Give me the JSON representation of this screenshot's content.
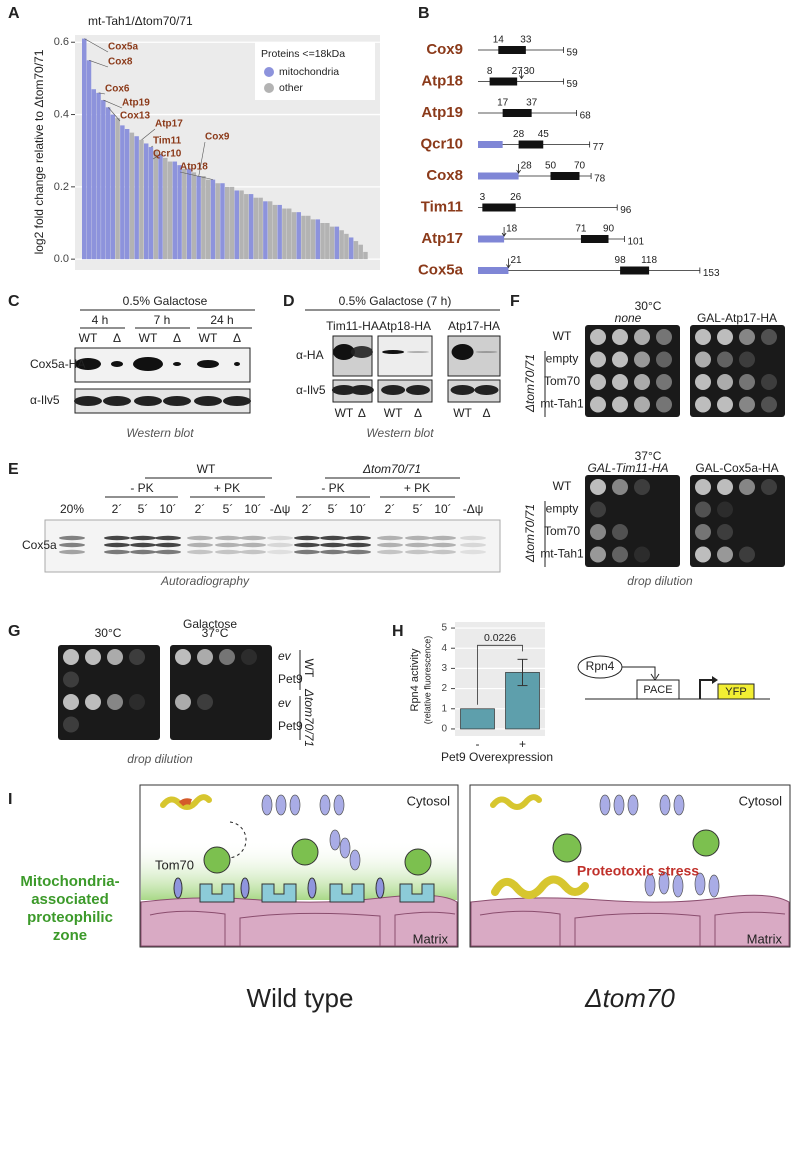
{
  "letters": [
    "A",
    "B",
    "C",
    "D",
    "E",
    "F",
    "G",
    "H",
    "I"
  ],
  "chart_data": [
    {
      "type": "bar",
      "title": "mt-Tah1/Δtom70/71",
      "y_label": "log2 fold change relative to Δtom70/71",
      "legend_title": "Proteins <=18kDa",
      "legend": "top-right",
      "grid": true,
      "ylim": [
        -0.03,
        0.62
      ],
      "yticks": [
        {
          "value": 0,
          "label": "0.0"
        },
        0.2,
        0.4,
        0.6
      ],
      "series": [
        {
          "name": "mitochondria",
          "color": "#8d93dc",
          "values": [
            0.61,
            0.55,
            0.47,
            0.46,
            0.44,
            0.42,
            0.4,
            null,
            0.37,
            0.36,
            null,
            0.34,
            null,
            0.32,
            0.31,
            null,
            0.29,
            null,
            null,
            0.27,
            0.26,
            null,
            0.25,
            null,
            0.23,
            null,
            null,
            0.22,
            null,
            0.21,
            null,
            null,
            0.19,
            null,
            null,
            0.18,
            null,
            null,
            0.16,
            null,
            null,
            0.15,
            null,
            null,
            null,
            0.13,
            null,
            null,
            null,
            0.11,
            null,
            null,
            null,
            0.09,
            null,
            null,
            0.06,
            null,
            null,
            null
          ]
        },
        {
          "name": "other",
          "color": "#b3b3b3",
          "values": [
            null,
            null,
            null,
            null,
            null,
            null,
            null,
            0.39,
            null,
            null,
            0.35,
            null,
            0.33,
            null,
            null,
            0.3,
            null,
            0.28,
            0.27,
            null,
            null,
            0.25,
            null,
            0.24,
            null,
            0.23,
            0.22,
            null,
            0.21,
            null,
            0.2,
            0.2,
            null,
            0.19,
            0.18,
            null,
            0.17,
            0.17,
            null,
            0.16,
            0.15,
            null,
            0.14,
            0.14,
            0.13,
            null,
            0.12,
            0.12,
            0.11,
            null,
            0.1,
            0.1,
            0.09,
            null,
            0.08,
            0.07,
            null,
            0.05,
            0.04,
            0.02
          ]
        }
      ],
      "annotations": [
        "Cox5a",
        "Cox8",
        "Cox6",
        "Atp19",
        "Cox13",
        "Atp17",
        "Tim11",
        "Qcr10",
        "Cox9",
        "Atp18"
      ]
    },
    {
      "type": "bar",
      "y_label": "Rpn4 activity",
      "y_sublabel": "(relative fluorescence)",
      "x_label": "Pet9 Overexpression",
      "categories": [
        "-",
        "+"
      ],
      "values": [
        1,
        2.8
      ],
      "errors": [
        null,
        0.65
      ],
      "color": "#5e9fac",
      "ylim": [
        -0.35,
        5.3
      ],
      "yticks": [
        0,
        1,
        2,
        3,
        4,
        5
      ],
      "grid": true,
      "p_value": "0.0226"
    }
  ],
  "panel_B": {
    "rows": [
      {
        "name": "Cox9",
        "box": [
          14,
          33
        ],
        "length": 59
      },
      {
        "name": "Atp18",
        "box": [
          8,
          27
        ],
        "cleavage": 30,
        "length": 59
      },
      {
        "name": "Atp19",
        "box": [
          17,
          37
        ],
        "length": 68
      },
      {
        "name": "Qcr10",
        "presequence": 17,
        "box": [
          28,
          45
        ],
        "length": 77
      },
      {
        "name": "Cox8",
        "presequence": 28,
        "cleavage": 28,
        "box": [
          50,
          70
        ],
        "length": 78
      },
      {
        "name": "Tim11",
        "box": [
          3,
          26
        ],
        "length": 96
      },
      {
        "name": "Atp17",
        "presequence": 18,
        "cleavage": 18,
        "box": [
          71,
          90
        ],
        "length": 101
      },
      {
        "name": "Cox5a",
        "presequence": 21,
        "cleavage": 21,
        "box": [
          98,
          118
        ],
        "length": 153
      }
    ]
  },
  "panel_C": {
    "condition": "0.5% Galactose",
    "times": [
      "4 h",
      "7 h",
      "24 h"
    ],
    "lanes": [
      "WT",
      "Δ",
      "WT",
      "Δ",
      "WT",
      "Δ"
    ],
    "rows": [
      "Cox5a-HA",
      "α-Ilv5"
    ],
    "caption": "Western blot"
  },
  "panel_D": {
    "condition": "0.5% Galactose (7 h)",
    "constructs": [
      "Tim11-HA",
      "Atp18-HA",
      "Atp17-HA"
    ],
    "lanes": [
      "WT",
      "Δ",
      "WT",
      "Δ",
      "WT",
      "Δ"
    ],
    "rows": [
      "α-HA",
      "α-Ilv5"
    ],
    "caption": "Western blot"
  },
  "panel_E": {
    "standard": "20%",
    "strains": [
      "WT",
      "Δtom70/71"
    ],
    "treatments": [
      "- PK",
      "+ PK",
      "- PK",
      "+ PK"
    ],
    "times": [
      "2´",
      "5´",
      "10´",
      "2´",
      "5´",
      "10´",
      "2´",
      "5´",
      "10´",
      "2´",
      "5´",
      "10´"
    ],
    "controls": [
      "-Δψ",
      "-Δψ"
    ],
    "row": "Cox5a",
    "caption": "Autoradiography"
  },
  "panel_F": {
    "temps": [
      "30°C",
      "37°C"
    ],
    "plates": [
      "none",
      "GAL-Atp17-HA",
      "GAL-Tim11-HA",
      "GAL-Cox5a-HA"
    ],
    "rows": [
      [
        "WT",
        "empty",
        "Tom70",
        "mt-Tah1"
      ],
      [
        "WT",
        "empty",
        "Tom70",
        "mt-Tah1"
      ]
    ],
    "strain": [
      "Δtom70/71",
      "Δtom70/71"
    ],
    "caption": "drop dilution"
  },
  "panel_G": {
    "medium": "Galactose",
    "temps": [
      "30°C",
      "37°C"
    ],
    "rows": [
      "ev",
      "Pet9",
      "ev",
      "Pet9"
    ],
    "strains": [
      "WT",
      "Δtom70/71"
    ],
    "caption": "drop dilution"
  },
  "panel_H_diagram": {
    "factor": "Rpn4",
    "promoter": "PACE",
    "reporter": "YFP"
  },
  "panel_I": {
    "cytosol": [
      "Cytosol",
      "Cytosol"
    ],
    "zone": [
      "Mitochondria-",
      "associated",
      "proteophilic",
      "zone"
    ],
    "receptor": "Tom70",
    "matrix": [
      "Matrix",
      "Matrix"
    ],
    "stress": "Proteotoxic stress",
    "titles": [
      "Wild type",
      "Δtom70"
    ]
  }
}
